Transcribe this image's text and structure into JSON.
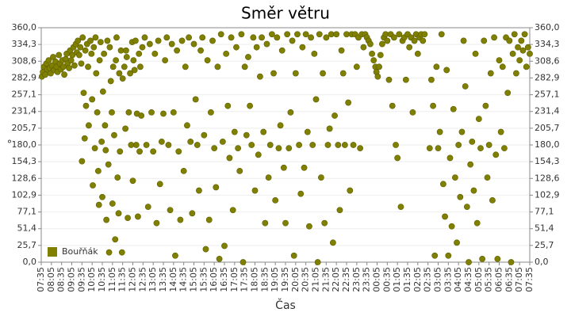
{
  "chart_data": {
    "type": "scatter",
    "title": "Směr větru",
    "x_label": "Čas",
    "y_label": "°",
    "grid": true,
    "legend": "bottom-left",
    "xlim": [
      0,
      1440
    ],
    "xticks": [
      {
        "value": 0,
        "label": "07:35"
      },
      {
        "value": 30,
        "label": "08:05"
      },
      {
        "value": 60,
        "label": "08:35"
      },
      {
        "value": 90,
        "label": "09:05"
      },
      {
        "value": 120,
        "label": "09:35"
      },
      {
        "value": 150,
        "label": "10:05"
      },
      {
        "value": 180,
        "label": "10:35"
      },
      {
        "value": 210,
        "label": "11:05"
      },
      {
        "value": 240,
        "label": "11:35"
      },
      {
        "value": 270,
        "label": "12:05"
      },
      {
        "value": 300,
        "label": "12:35"
      },
      {
        "value": 330,
        "label": "13:05"
      },
      {
        "value": 360,
        "label": "13:35"
      },
      {
        "value": 390,
        "label": "14:05"
      },
      {
        "value": 420,
        "label": "14:35"
      },
      {
        "value": 450,
        "label": "15:05"
      },
      {
        "value": 480,
        "label": "15:35"
      },
      {
        "value": 510,
        "label": "16:05"
      },
      {
        "value": 540,
        "label": "16:35"
      },
      {
        "value": 570,
        "label": "17:05"
      },
      {
        "value": 600,
        "label": "17:35"
      },
      {
        "value": 630,
        "label": "18:05"
      },
      {
        "value": 660,
        "label": "18:35"
      },
      {
        "value": 690,
        "label": "19:05"
      },
      {
        "value": 720,
        "label": "19:35"
      },
      {
        "value": 750,
        "label": "20:05"
      },
      {
        "value": 780,
        "label": "20:35"
      },
      {
        "value": 810,
        "label": "21:05"
      },
      {
        "value": 840,
        "label": "21:35"
      },
      {
        "value": 870,
        "label": "22:05"
      },
      {
        "value": 900,
        "label": "22:35"
      },
      {
        "value": 930,
        "label": "23:05"
      },
      {
        "value": 960,
        "label": "23:35"
      },
      {
        "value": 990,
        "label": "00:05"
      },
      {
        "value": 1020,
        "label": "00:35"
      },
      {
        "value": 1050,
        "label": "01:05"
      },
      {
        "value": 1080,
        "label": "01:35"
      },
      {
        "value": 1110,
        "label": "02:05"
      },
      {
        "value": 1140,
        "label": "02:35"
      },
      {
        "value": 1170,
        "label": "03:05"
      },
      {
        "value": 1200,
        "label": "03:35"
      },
      {
        "value": 1230,
        "label": "04:05"
      },
      {
        "value": 1260,
        "label": "04:35"
      },
      {
        "value": 1290,
        "label": "05:05"
      },
      {
        "value": 1320,
        "label": "05:35"
      },
      {
        "value": 1350,
        "label": "06:05"
      },
      {
        "value": 1380,
        "label": "06:35"
      },
      {
        "value": 1410,
        "label": "07:05"
      },
      {
        "value": 1440,
        "label": "07:35"
      }
    ],
    "ylim": [
      0,
      360
    ],
    "yticks": [
      {
        "value": 0,
        "label": "0,0"
      },
      {
        "value": 25.7,
        "label": "25,7"
      },
      {
        "value": 51.4,
        "label": "51,4"
      },
      {
        "value": 77.1,
        "label": "77,1"
      },
      {
        "value": 102.9,
        "label": "102,9"
      },
      {
        "value": 128.6,
        "label": "128,6"
      },
      {
        "value": 154.3,
        "label": "154,3"
      },
      {
        "value": 180,
        "label": "180,0"
      },
      {
        "value": 205.7,
        "label": "205,7"
      },
      {
        "value": 231.4,
        "label": "231,4"
      },
      {
        "value": 257.1,
        "label": "257,1"
      },
      {
        "value": 282.9,
        "label": "282,9"
      },
      {
        "value": 308.6,
        "label": "308,6"
      },
      {
        "value": 334.3,
        "label": "334,3"
      },
      {
        "value": 360,
        "label": "360,0"
      }
    ],
    "x": [
      2,
      5,
      8,
      12,
      15,
      18,
      22,
      25,
      28,
      32,
      35,
      38,
      42,
      45,
      48,
      52,
      55,
      58,
      62,
      65,
      68,
      72,
      75,
      78,
      82,
      85,
      88,
      92,
      95,
      98,
      102,
      105,
      108,
      112,
      115,
      118,
      120,
      122,
      125,
      128,
      130,
      132,
      135,
      138,
      140,
      145,
      148,
      150,
      152,
      155,
      158,
      160,
      162,
      165,
      168,
      170,
      172,
      175,
      178,
      180,
      182,
      185,
      188,
      190,
      192,
      195,
      198,
      200,
      202,
      205,
      208,
      210,
      212,
      215,
      218,
      220,
      222,
      225,
      228,
      230,
      232,
      235,
      238,
      240,
      245,
      248,
      250,
      252,
      255,
      258,
      262,
      265,
      268,
      270,
      272,
      275,
      278,
      280,
      282,
      285,
      288,
      290,
      292,
      295,
      298,
      305,
      310,
      315,
      320,
      325,
      330,
      335,
      340,
      345,
      350,
      355,
      360,
      365,
      370,
      375,
      380,
      385,
      390,
      395,
      400,
      405,
      410,
      415,
      420,
      425,
      430,
      435,
      440,
      445,
      450,
      455,
      460,
      465,
      470,
      475,
      480,
      485,
      490,
      495,
      500,
      505,
      510,
      515,
      520,
      525,
      530,
      535,
      540,
      545,
      550,
      555,
      560,
      565,
      570,
      575,
      580,
      585,
      590,
      595,
      600,
      605,
      610,
      615,
      620,
      625,
      630,
      635,
      640,
      645,
      650,
      655,
      660,
      665,
      670,
      675,
      680,
      685,
      690,
      695,
      700,
      705,
      710,
      715,
      720,
      725,
      730,
      735,
      740,
      745,
      750,
      755,
      760,
      765,
      770,
      775,
      780,
      785,
      790,
      795,
      800,
      805,
      810,
      815,
      820,
      825,
      830,
      835,
      840,
      845,
      850,
      855,
      860,
      865,
      870,
      875,
      880,
      885,
      890,
      895,
      900,
      905,
      910,
      915,
      920,
      925,
      930,
      935,
      940,
      945,
      950,
      955,
      960,
      965,
      970,
      975,
      980,
      985,
      988,
      992,
      996,
      1000,
      1005,
      1010,
      1015,
      1020,
      1025,
      1030,
      1035,
      1040,
      1045,
      1050,
      1055,
      1060,
      1065,
      1070,
      1075,
      1080,
      1085,
      1090,
      1095,
      1100,
      1105,
      1110,
      1115,
      1120,
      1125,
      1130,
      1145,
      1150,
      1155,
      1160,
      1165,
      1170,
      1175,
      1180,
      1185,
      1190,
      1195,
      1200,
      1205,
      1210,
      1215,
      1220,
      1225,
      1230,
      1235,
      1240,
      1245,
      1250,
      1255,
      1260,
      1265,
      1270,
      1275,
      1280,
      1285,
      1290,
      1295,
      1300,
      1305,
      1310,
      1315,
      1320,
      1325,
      1330,
      1335,
      1340,
      1345,
      1350,
      1355,
      1360,
      1365,
      1370,
      1375,
      1380,
      1385,
      1390,
      1395,
      1400,
      1405,
      1410,
      1415,
      1420,
      1425,
      1430,
      1435,
      1440
    ],
    "series": [
      {
        "name": "Bouřňák",
        "color": "#808000",
        "values": [
          285,
          292,
          300,
          288,
          305,
          296,
          310,
          298,
          290,
          302,
          315,
          295,
          308,
          300,
          292,
          318,
          305,
          296,
          310,
          300,
          288,
          312,
          320,
          305,
          298,
          325,
          310,
          318,
          330,
          302,
          335,
          322,
          340,
          318,
          330,
          305,
          155,
          345,
          260,
          190,
          325,
          240,
          335,
          300,
          210,
          340,
          320,
          250,
          118,
          330,
          175,
          345,
          290,
          230,
          140,
          88,
          310,
          338,
          185,
          100,
          262,
          320,
          210,
          172,
          65,
          340,
          150,
          15,
          330,
          278,
          230,
          90,
          300,
          195,
          35,
          310,
          345,
          130,
          75,
          290,
          170,
          325,
          15,
          282,
          300,
          205,
          325,
          315,
          68,
          230,
          290,
          180,
          338,
          125,
          310,
          295,
          340,
          180,
          228,
          70,
          320,
          170,
          300,
          225,
          330,
          345,
          180,
          85,
          335,
          230,
          170,
          320,
          60,
          340,
          120,
          185,
          228,
          310,
          345,
          180,
          80,
          335,
          230,
          10,
          325,
          170,
          65,
          340,
          140,
          300,
          210,
          345,
          185,
          75,
          335,
          250,
          180,
          110,
          325,
          345,
          195,
          20,
          310,
          65,
          230,
          340,
          175,
          115,
          300,
          5,
          350,
          185,
          25,
          320,
          240,
          160,
          345,
          80,
          200,
          330,
          175,
          140,
          350,
          0,
          300,
          195,
          315,
          240,
          180,
          345,
          110,
          330,
          165,
          285,
          345,
          200,
          60,
          335,
          130,
          180,
          350,
          290,
          95,
          345,
          175,
          210,
          325,
          145,
          60,
          350,
          175,
          230,
          340,
          10,
          290,
          350,
          180,
          105,
          330,
          145,
          350,
          200,
          55,
          345,
          180,
          320,
          250,
          0,
          350,
          130,
          290,
          60,
          345,
          180,
          205,
          350,
          30,
          225,
          350,
          180,
          80,
          325,
          290,
          180,
          350,
          245,
          110,
          350,
          180,
          350,
          300,
          345,
          175,
          350,
          330,
          350,
          345,
          340,
          335,
          320,
          310,
          300,
          292,
          285,
          300,
          318,
          335,
          345,
          350,
          340,
          280,
          350,
          240,
          345,
          180,
          160,
          350,
          85,
          340,
          345,
          280,
          350,
          330,
          345,
          230,
          340,
          350,
          320,
          345,
          350,
          340,
          350,
          175,
          280,
          240,
          10,
          300,
          175,
          200,
          350,
          120,
          70,
          295,
          10,
          160,
          55,
          235,
          130,
          30,
          180,
          100,
          200,
          340,
          270,
          85,
          0,
          150,
          185,
          110,
          320,
          60,
          220,
          175,
          5,
          340,
          240,
          130,
          180,
          290,
          95,
          345,
          165,
          5,
          310,
          200,
          300,
          175,
          345,
          260,
          340,
          0,
          320,
          350,
          290,
          330,
          310,
          340,
          325,
          350,
          300,
          330,
          320
        ]
      }
    ]
  }
}
